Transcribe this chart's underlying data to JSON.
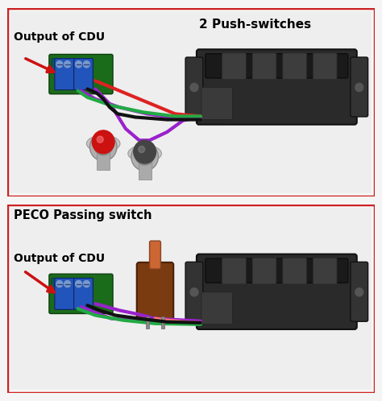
{
  "fig_width": 4.74,
  "fig_height": 4.98,
  "dpi": 100,
  "background_color": "#f5f5f5",
  "border_color": "#cc2222",
  "border_width": 2.5,
  "panel1": {
    "label_top": "2 Push-switches",
    "label_bottom": "Output of CDU"
  },
  "panel2": {
    "label_top": "PECO Passing switch",
    "label_bottom": "Output of CDU"
  }
}
